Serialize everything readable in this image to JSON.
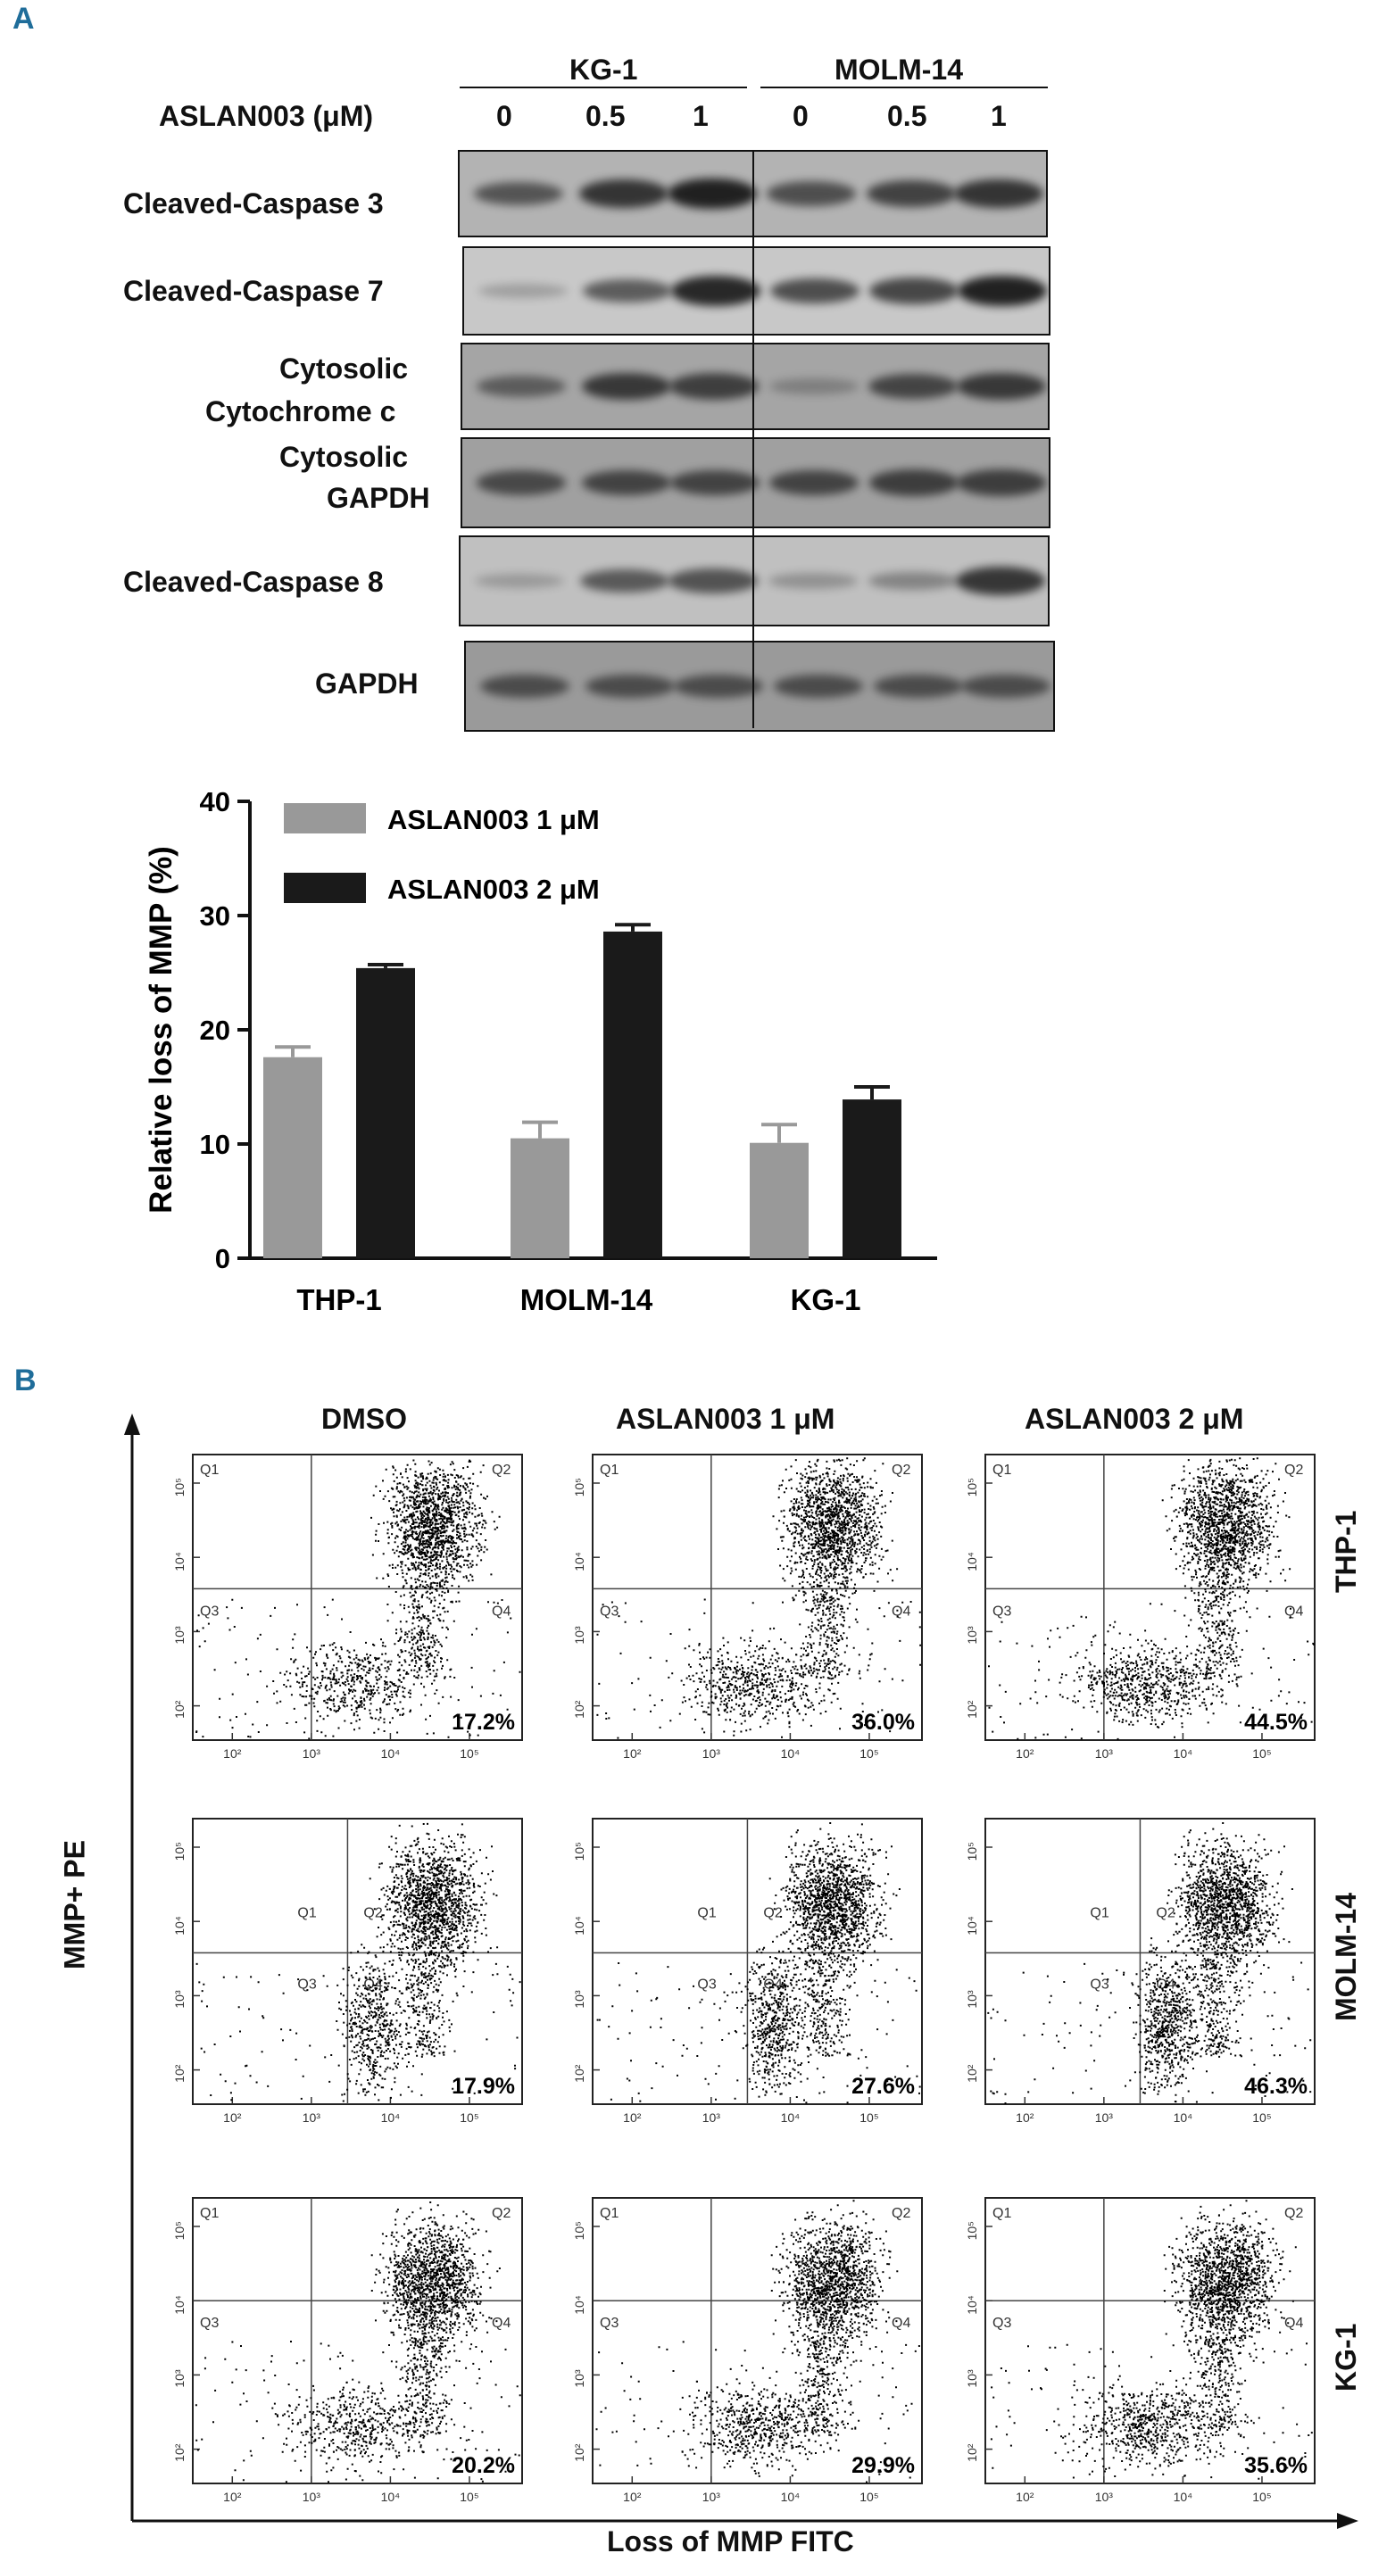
{
  "panel_a": {
    "letter": "A",
    "cell_lines": [
      "KG-1",
      "MOLM-14"
    ],
    "dose_label": "ASLAN003 (μM)",
    "doses": [
      "0",
      "0.5",
      "1",
      "0",
      "0.5",
      "1"
    ],
    "blots": [
      {
        "label_lines": [
          "Cleaved-Caspase 3"
        ],
        "intensity": [
          0.55,
          0.8,
          0.95,
          0.6,
          0.7,
          0.8
        ]
      },
      {
        "label_lines": [
          "Cleaved-Caspase 7"
        ],
        "intensity": [
          0.1,
          0.55,
          0.9,
          0.65,
          0.7,
          0.95
        ]
      },
      {
        "label_lines": [
          "Cytosolic",
          "Cytochrome c"
        ],
        "intensity": [
          0.45,
          0.75,
          0.7,
          0.15,
          0.65,
          0.75
        ]
      },
      {
        "label_lines": [
          "Cytosolic",
          "GAPDH"
        ],
        "intensity": [
          0.6,
          0.65,
          0.65,
          0.65,
          0.7,
          0.7
        ]
      },
      {
        "label_lines": [
          "Cleaved-Caspase 8"
        ],
        "intensity": [
          0.1,
          0.55,
          0.6,
          0.15,
          0.25,
          0.8
        ]
      },
      {
        "label_lines": [
          "GAPDH"
        ],
        "intensity": [
          0.55,
          0.55,
          0.55,
          0.55,
          0.55,
          0.55
        ]
      }
    ]
  },
  "chart_data": {
    "type": "bar",
    "ylabel": "Relative loss of MMP (%)",
    "xlabel": "",
    "ylim": [
      0,
      40
    ],
    "yticks": [
      "0",
      "10",
      "20",
      "30",
      "40"
    ],
    "categories": [
      "THP-1",
      "MOLM-14",
      "KG-1"
    ],
    "series": [
      {
        "name": "ASLAN003   1 μM",
        "color": "#999999",
        "values": [
          17.6,
          10.5,
          10.1
        ],
        "errors": [
          0.9,
          1.4,
          1.6
        ]
      },
      {
        "name": "ASLAN003   2 μM",
        "color": "#1a1a1a",
        "values": [
          25.4,
          28.6,
          13.9
        ],
        "errors": [
          0.3,
          0.6,
          1.1
        ]
      }
    ],
    "legend": "top-left"
  },
  "panel_b": {
    "letter": "B",
    "conditions": [
      "DMSO",
      "ASLAN003 1 μM",
      "ASLAN003 2 μM"
    ],
    "cell_lines": [
      "THP-1",
      "MOLM-14",
      "KG-1"
    ],
    "y_axis_label": "MMP+ PE",
    "x_axis_label": "Loss of MMP FITC",
    "quadrants": [
      "Q1",
      "Q2",
      "Q3",
      "Q4"
    ],
    "axis_ticks": [
      "10²",
      "10³",
      "10⁴",
      "10⁵"
    ],
    "percentages": [
      [
        "17.2%",
        "36.0%",
        "44.5%"
      ],
      [
        "17.9%",
        "27.6%",
        "46.3%"
      ],
      [
        "20.2%",
        "29.9%",
        "35.6%"
      ]
    ]
  }
}
